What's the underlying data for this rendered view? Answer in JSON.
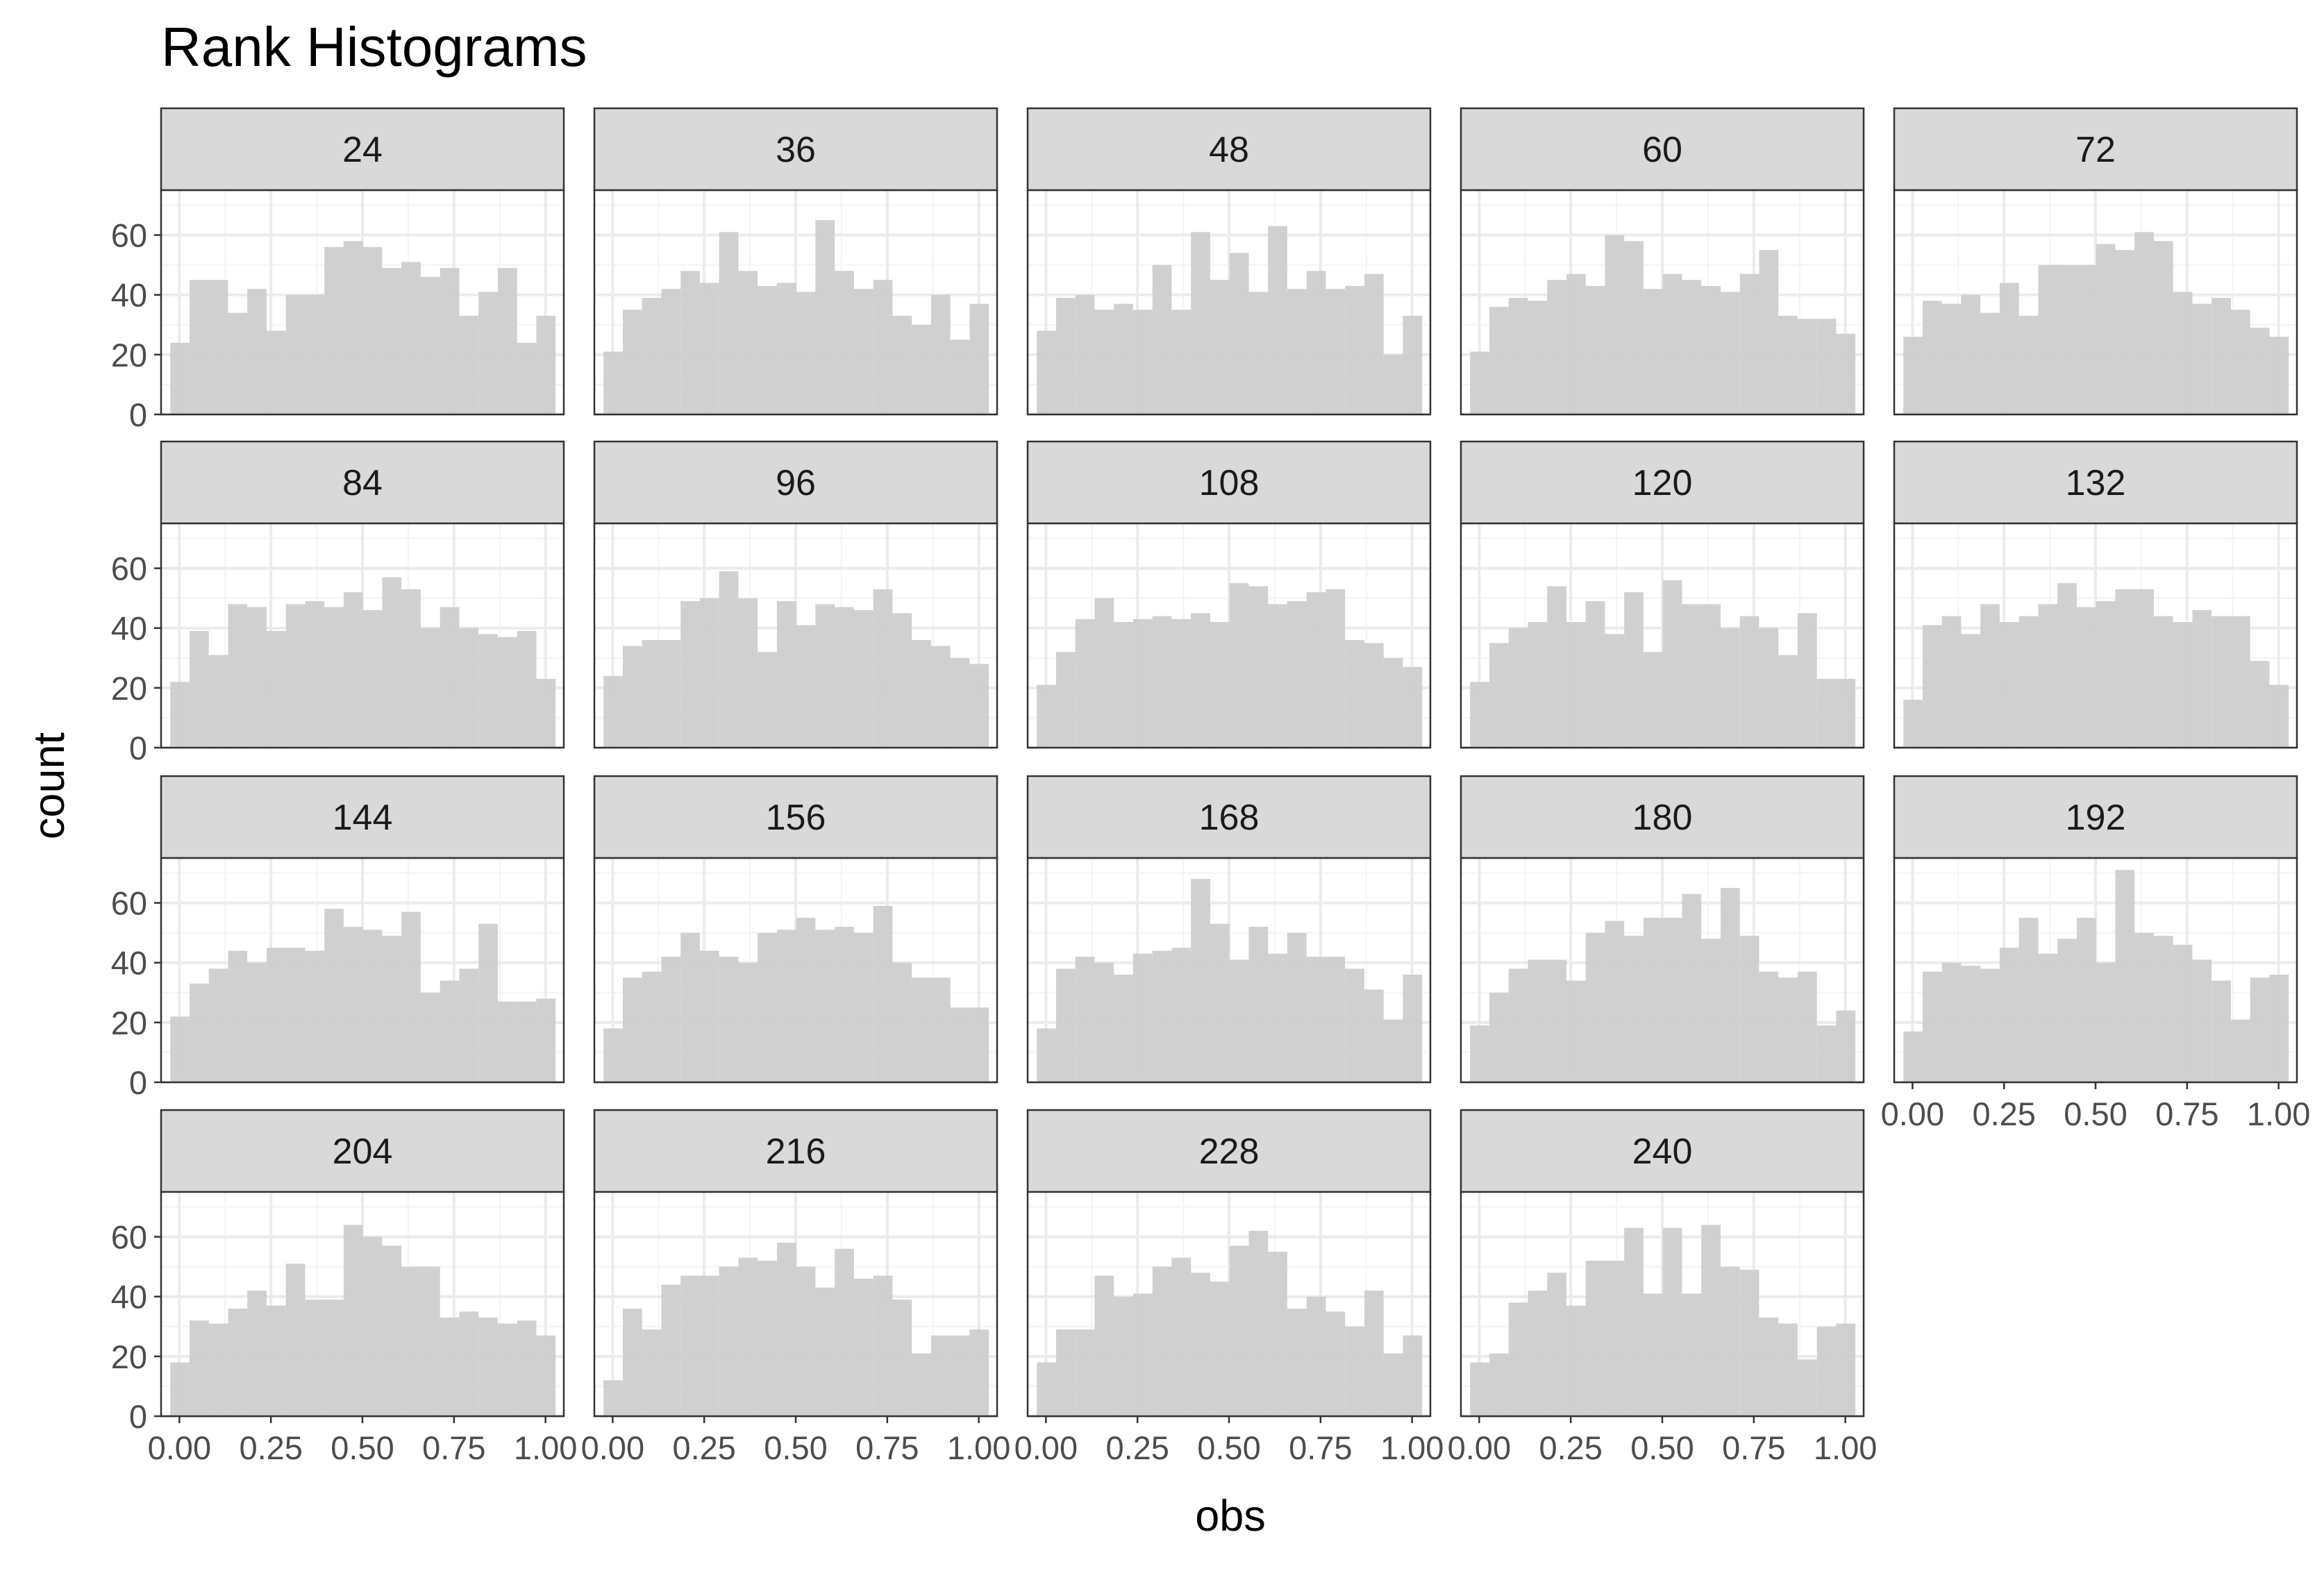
{
  "chart_data": {
    "type": "histogram",
    "title": "Rank Histograms",
    "xlabel": "obs",
    "ylabel": "count",
    "xlim": [
      -0.05,
      1.05
    ],
    "ylim": [
      0,
      75
    ],
    "x_ticks": [
      "0.00",
      "0.25",
      "0.50",
      "0.75",
      "1.00"
    ],
    "y_ticks": [
      "0",
      "20",
      "40",
      "60"
    ],
    "bins": 20,
    "bin_start": -0.025,
    "bin_width": 0.05263,
    "columns": 5,
    "colors": {
      "bar": "#cccccc",
      "strip": "#d9d9d9",
      "panel_border": "#333333",
      "grid_major": "#ebebeb",
      "grid_minor": "#f5f5f5"
    },
    "panels": [
      {
        "label": "24",
        "counts": [
          24,
          45,
          45,
          34,
          42,
          28,
          40,
          40,
          56,
          58,
          56,
          49,
          51,
          46,
          49,
          33,
          41,
          49,
          24,
          33
        ]
      },
      {
        "label": "36",
        "counts": [
          21,
          35,
          39,
          42,
          48,
          44,
          61,
          48,
          43,
          44,
          41,
          65,
          48,
          42,
          45,
          33,
          30,
          40,
          25,
          37
        ]
      },
      {
        "label": "48",
        "counts": [
          28,
          39,
          40,
          35,
          37,
          35,
          50,
          35,
          61,
          45,
          54,
          41,
          63,
          42,
          48,
          42,
          43,
          47,
          20,
          33
        ]
      },
      {
        "label": "60",
        "counts": [
          21,
          36,
          39,
          38,
          45,
          47,
          43,
          60,
          58,
          42,
          47,
          45,
          43,
          41,
          47,
          55,
          33,
          32,
          32,
          27
        ]
      },
      {
        "label": "72",
        "counts": [
          26,
          38,
          37,
          40,
          34,
          44,
          33,
          50,
          50,
          50,
          57,
          55,
          61,
          58,
          41,
          37,
          39,
          35,
          29,
          26
        ]
      },
      {
        "label": "84",
        "counts": [
          22,
          39,
          31,
          48,
          47,
          39,
          48,
          49,
          47,
          52,
          46,
          57,
          53,
          40,
          47,
          40,
          38,
          37,
          39,
          23
        ]
      },
      {
        "label": "96",
        "counts": [
          24,
          34,
          36,
          36,
          49,
          50,
          59,
          50,
          32,
          49,
          41,
          48,
          47,
          46,
          53,
          45,
          36,
          34,
          30,
          28
        ]
      },
      {
        "label": "108",
        "counts": [
          21,
          32,
          43,
          50,
          42,
          43,
          44,
          43,
          45,
          42,
          55,
          54,
          48,
          49,
          52,
          53,
          36,
          35,
          30,
          27
        ]
      },
      {
        "label": "120",
        "counts": [
          22,
          35,
          40,
          42,
          54,
          42,
          49,
          38,
          52,
          32,
          56,
          48,
          48,
          40,
          44,
          40,
          31,
          45,
          23,
          23
        ]
      },
      {
        "label": "132",
        "counts": [
          16,
          41,
          44,
          38,
          48,
          42,
          44,
          48,
          55,
          47,
          49,
          53,
          53,
          44,
          42,
          46,
          44,
          44,
          29,
          21
        ]
      },
      {
        "label": "144",
        "counts": [
          22,
          33,
          38,
          44,
          40,
          45,
          45,
          44,
          58,
          52,
          51,
          49,
          57,
          30,
          34,
          38,
          53,
          27,
          27,
          28
        ]
      },
      {
        "label": "156",
        "counts": [
          18,
          35,
          37,
          42,
          50,
          44,
          42,
          40,
          50,
          51,
          55,
          51,
          52,
          50,
          59,
          40,
          35,
          35,
          25,
          25
        ]
      },
      {
        "label": "168",
        "counts": [
          18,
          38,
          42,
          40,
          36,
          43,
          44,
          45,
          68,
          53,
          41,
          52,
          43,
          50,
          42,
          42,
          38,
          31,
          21,
          36
        ]
      },
      {
        "label": "180",
        "counts": [
          19,
          30,
          38,
          41,
          41,
          34,
          50,
          54,
          49,
          55,
          55,
          63,
          48,
          65,
          49,
          37,
          35,
          37,
          19,
          24
        ]
      },
      {
        "label": "192",
        "counts": [
          17,
          37,
          40,
          39,
          38,
          45,
          55,
          43,
          48,
          55,
          40,
          71,
          50,
          49,
          46,
          41,
          34,
          21,
          35,
          36
        ]
      },
      {
        "label": "204",
        "counts": [
          18,
          32,
          31,
          36,
          42,
          37,
          51,
          39,
          39,
          64,
          60,
          57,
          50,
          50,
          33,
          35,
          33,
          31,
          32,
          27
        ]
      },
      {
        "label": "216",
        "counts": [
          12,
          36,
          29,
          44,
          47,
          47,
          50,
          53,
          52,
          58,
          50,
          43,
          56,
          46,
          47,
          39,
          21,
          27,
          27,
          29
        ]
      },
      {
        "label": "228",
        "counts": [
          18,
          29,
          29,
          47,
          40,
          41,
          50,
          53,
          48,
          45,
          57,
          62,
          55,
          36,
          40,
          35,
          30,
          42,
          21,
          27
        ]
      },
      {
        "label": "240",
        "counts": [
          18,
          21,
          38,
          42,
          48,
          37,
          52,
          52,
          63,
          41,
          63,
          41,
          64,
          50,
          49,
          33,
          31,
          19,
          30,
          31
        ]
      }
    ]
  }
}
